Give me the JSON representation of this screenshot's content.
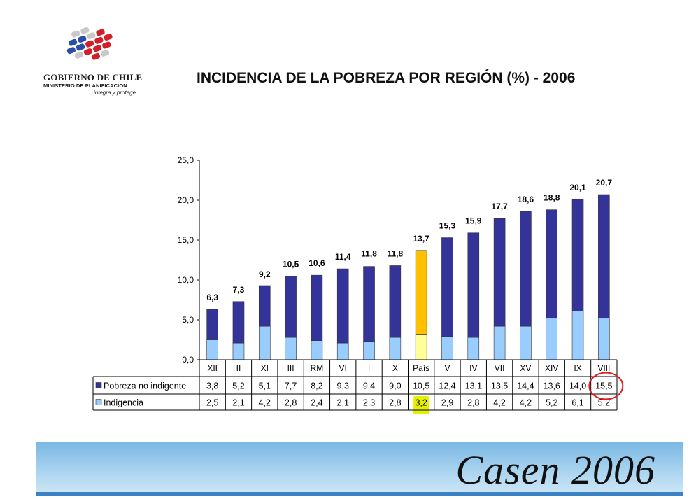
{
  "header": {
    "logo_line1": "GOBIERNO DE CHILE",
    "logo_line2": "MINISTERIO DE PLANIFICACION",
    "logo_line3": "integra y protege",
    "title": "INCIDENCIA DE LA POBREZA POR REGIÓN (%) - 2006"
  },
  "footer": {
    "brand": "Casen 2006"
  },
  "colors": {
    "pobreza_no_indigente": "#333399",
    "indigencia": "#99ccff",
    "pais_pobreza_no_indigente": "#ffc000",
    "pais_indigencia": "#ffff99",
    "highlight_cell": "#e5f000",
    "circle": "#e02020"
  },
  "chart_data": {
    "type": "bar",
    "stacked": true,
    "categories": [
      "XII",
      "II",
      "XI",
      "III",
      "RM",
      "VI",
      "I",
      "X",
      "País",
      "V",
      "IV",
      "VII",
      "XV",
      "XIV",
      "IX",
      "VIII"
    ],
    "series": [
      {
        "name": "Pobreza no indigente",
        "values": [
          3.8,
          5.2,
          5.1,
          7.7,
          8.2,
          9.3,
          9.4,
          9.0,
          10.5,
          12.4,
          13.1,
          13.5,
          14.4,
          13.6,
          14.0,
          15.5
        ],
        "labels": [
          "3,8",
          "5,2",
          "5,1",
          "7,7",
          "8,2",
          "9,3",
          "9,4",
          "9,0",
          "10,5",
          "12,4",
          "13,1",
          "13,5",
          "14,4",
          "13,6",
          "14,0",
          "15,5"
        ]
      },
      {
        "name": "Indigencia",
        "values": [
          2.5,
          2.1,
          4.2,
          2.8,
          2.4,
          2.1,
          2.3,
          2.8,
          3.2,
          2.9,
          2.8,
          4.2,
          4.2,
          5.2,
          6.1,
          5.2
        ],
        "labels": [
          "2,5",
          "2,1",
          "4,2",
          "2,8",
          "2,4",
          "2,1",
          "2,3",
          "2,8",
          "3,2",
          "2,9",
          "2,8",
          "4,2",
          "4,2",
          "5,2",
          "6,1",
          "5,2"
        ]
      }
    ],
    "totals": [
      "6,3",
      "7,3",
      "9,2",
      "10,5",
      "10,6",
      "11,4",
      "11,8",
      "11,8",
      "13,7",
      "15,3",
      "15,9",
      "17,7",
      "18,6",
      "18,8",
      "20,1",
      "20,7"
    ],
    "total_values": [
      6.3,
      7.3,
      9.2,
      10.5,
      10.6,
      11.4,
      11.8,
      11.8,
      13.7,
      15.3,
      15.9,
      17.7,
      18.6,
      18.8,
      20.1,
      20.7
    ],
    "ylim": [
      0,
      25
    ],
    "yticks": [
      0,
      5,
      10,
      15,
      20,
      25
    ],
    "ytick_labels": [
      "0,0",
      "5,0",
      "10,0",
      "15,0",
      "20,0",
      "25,0"
    ],
    "highlight_category": "País",
    "highlight_table_cell": {
      "series": 1,
      "category": "País"
    },
    "circled_table_cell": {
      "series": 0,
      "category": "VIII"
    },
    "data_table": true
  }
}
